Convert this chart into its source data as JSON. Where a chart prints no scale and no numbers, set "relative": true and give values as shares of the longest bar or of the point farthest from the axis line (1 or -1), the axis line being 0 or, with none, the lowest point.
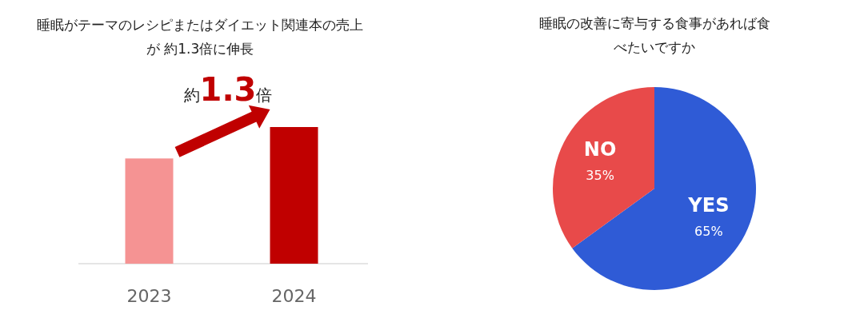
{
  "chart_data": [
    {
      "type": "bar",
      "title": "睡眠がテーマのレシピまたはダイエット関連本の売上が 約1.3倍に伸長",
      "categories": [
        "2023",
        "2024"
      ],
      "values": [
        0.77,
        1
      ],
      "colors": [
        "#f59393",
        "#c00000"
      ],
      "relative": true,
      "annotations": [
        "約1.3倍"
      ]
    },
    {
      "type": "pie",
      "title": "睡眠の改善に寄与する食事があれば食べたいですか",
      "categories": [
        "YES",
        "NO"
      ],
      "values": [
        65,
        35
      ],
      "colors": [
        "#2f5bd6",
        "#e84a4a"
      ],
      "value_labels": [
        "65%",
        "35%"
      ]
    }
  ]
}
